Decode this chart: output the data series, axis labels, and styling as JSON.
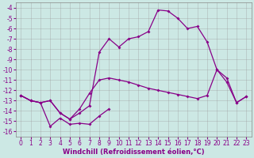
{
  "xlabel": "Windchill (Refroidissement éolien,°C)",
  "background_color": "#cce8e4",
  "grid_color": "#999999",
  "line_color": "#880088",
  "hours": [
    0,
    1,
    2,
    3,
    4,
    5,
    6,
    7,
    8,
    9,
    10,
    11,
    12,
    13,
    14,
    15,
    16,
    17,
    18,
    19,
    20,
    21,
    22,
    23
  ],
  "line_top": [
    -12.5,
    -13.0,
    -13.2,
    -13.0,
    -14.2,
    -14.8,
    -14.2,
    -13.5,
    -8.3,
    -7.0,
    -7.8,
    -7.0,
    -6.8,
    -6.3,
    -4.2,
    -4.3,
    -5.0,
    -6.0,
    -5.8,
    -7.3,
    -10.0,
    -10.8,
    -13.2,
    -12.6
  ],
  "line_mid": [
    -12.5,
    -13.0,
    -13.2,
    -13.0,
    -14.2,
    -14.8,
    -13.8,
    -12.3,
    -11.0,
    -10.8,
    -11.0,
    -11.2,
    -11.5,
    -11.8,
    -12.0,
    -12.2,
    -12.4,
    -12.6,
    -12.8,
    -12.5,
    -10.0,
    -11.2,
    -13.2,
    -12.6
  ],
  "line_bot": [
    -12.5,
    -13.0,
    -13.2,
    -15.5,
    -14.7,
    -15.3,
    -15.2,
    -15.3,
    -14.5,
    -13.8,
    null,
    null,
    null,
    null,
    null,
    null,
    null,
    null,
    null,
    null,
    null,
    null,
    null,
    null
  ],
  "ylim": [
    -16.5,
    -3.5
  ],
  "yticks": [
    -4,
    -5,
    -6,
    -7,
    -8,
    -9,
    -10,
    -11,
    -12,
    -13,
    -14,
    -15,
    -16
  ],
  "xticks": [
    0,
    1,
    2,
    3,
    4,
    5,
    6,
    7,
    8,
    9,
    10,
    11,
    12,
    13,
    14,
    15,
    16,
    17,
    18,
    19,
    20,
    21,
    22,
    23
  ],
  "markersize": 2.0,
  "linewidth": 0.9,
  "xlabel_fontsize": 6.0,
  "tick_fontsize": 5.5
}
